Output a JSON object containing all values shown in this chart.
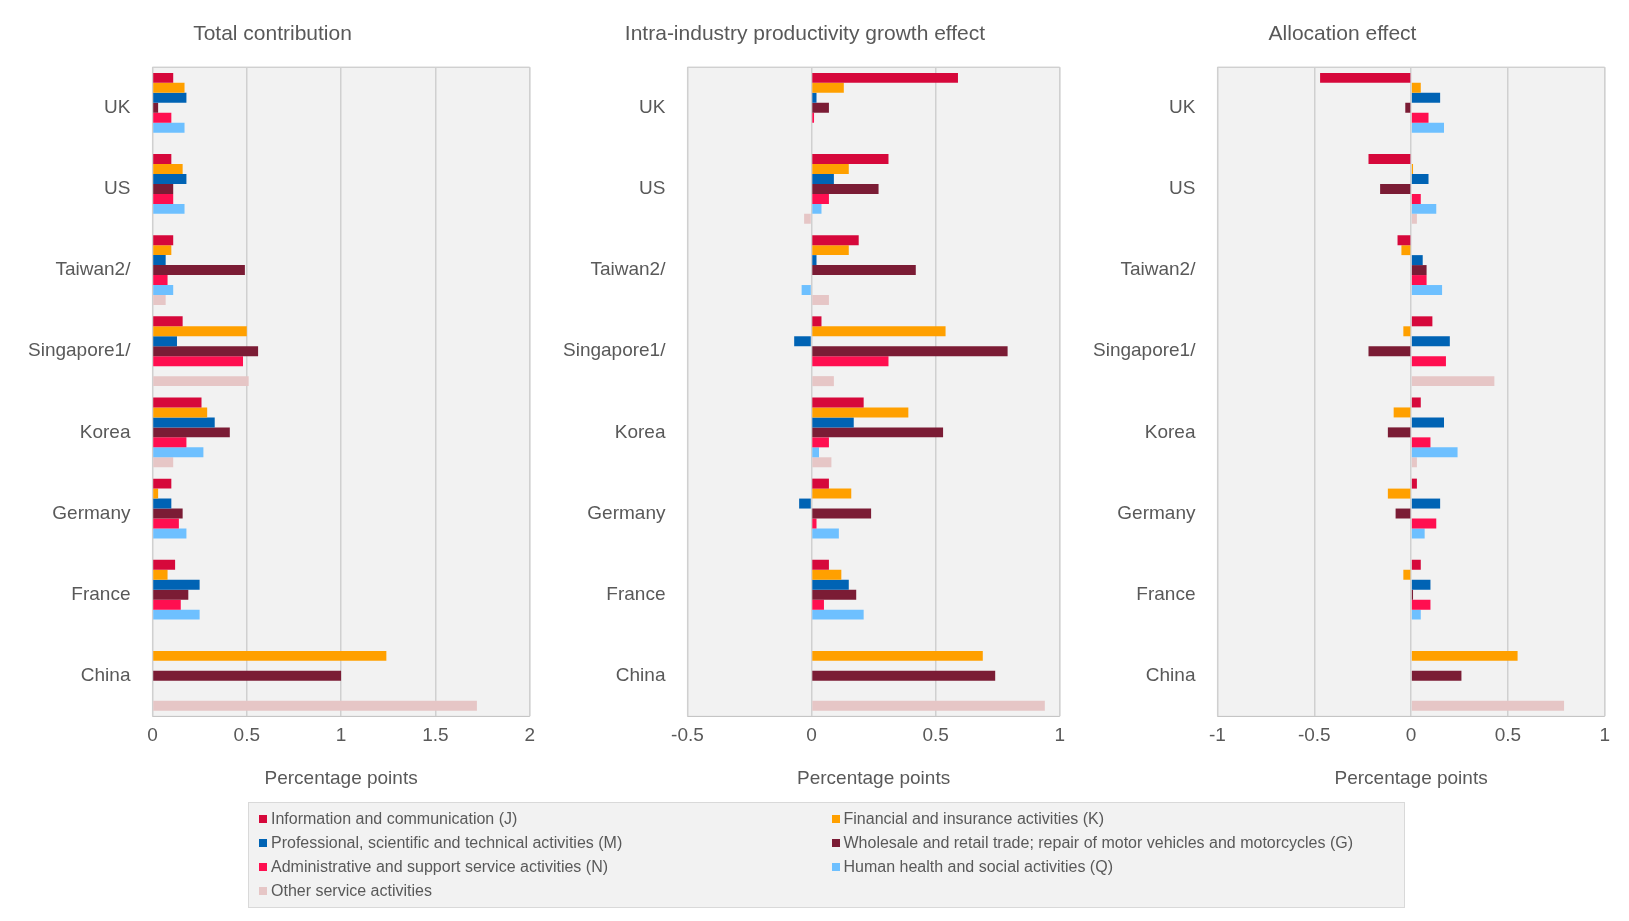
{
  "chart_data": [
    {
      "type": "bar",
      "orientation": "horizontal",
      "title": "Total contribution",
      "xlabel": "Percentage points",
      "categories": [
        "UK",
        "US",
        "Taiwan2/",
        "Singapore1/",
        "Korea",
        "Germany",
        "France",
        "China"
      ],
      "xlim": [
        0,
        2
      ],
      "xticks": [
        0,
        0.5,
        1,
        1.5,
        2
      ],
      "grid": "x",
      "legend": "bottom",
      "series": [
        {
          "name": "Information and communication (J)",
          "color": "#d6083b",
          "values": [
            0.11,
            0.1,
            0.11,
            0.16,
            0.26,
            0.1,
            0.12,
            null
          ]
        },
        {
          "name": "Financial and insurance activities (K)",
          "color": "#ffa000",
          "values": [
            0.17,
            0.16,
            0.1,
            0.5,
            0.29,
            0.03,
            0.08,
            1.24
          ]
        },
        {
          "name": "Professional, scientific and technical activities (M)",
          "color": "#0063b4",
          "values": [
            0.18,
            0.18,
            0.07,
            0.13,
            0.33,
            0.1,
            0.25,
            null
          ]
        },
        {
          "name": "Wholesale and retail trade; repair of motor vehicles and motorcycles (G)",
          "color": "#7b1c35",
          "values": [
            0.03,
            0.11,
            0.49,
            0.56,
            0.41,
            0.16,
            0.19,
            1.0
          ]
        },
        {
          "name": "Administrative and support service activities (N)",
          "color": "#ff0f50",
          "values": [
            0.1,
            0.11,
            0.08,
            0.48,
            0.18,
            0.14,
            0.15,
            null
          ]
        },
        {
          "name": "Human health and social activities (Q)",
          "color": "#6ec0ff",
          "values": [
            0.17,
            0.17,
            0.11,
            null,
            0.27,
            0.18,
            0.25,
            null
          ]
        },
        {
          "name": "Other service activities",
          "color": "#e6c6c6",
          "values": [
            null,
            null,
            0.07,
            0.51,
            0.11,
            null,
            null,
            1.72
          ]
        }
      ]
    },
    {
      "type": "bar",
      "orientation": "horizontal",
      "title": "Intra-industry productivity growth effect",
      "xlabel": "Percentage points",
      "categories": [
        "UK",
        "US",
        "Taiwan2/",
        "Singapore1/",
        "Korea",
        "Germany",
        "France",
        "China"
      ],
      "xlim": [
        -0.5,
        1
      ],
      "xticks": [
        -0.5,
        0,
        0.5,
        1
      ],
      "grid": "x",
      "series": [
        {
          "color": "#d6083b",
          "values": [
            0.59,
            0.31,
            0.19,
            0.04,
            0.21,
            0.07,
            0.07,
            null
          ]
        },
        {
          "color": "#ffa000",
          "values": [
            0.13,
            0.15,
            0.15,
            0.54,
            0.39,
            0.16,
            0.12,
            0.69
          ]
        },
        {
          "color": "#0063b4",
          "values": [
            0.02,
            0.09,
            0.02,
            -0.07,
            0.17,
            -0.05,
            0.15,
            null
          ]
        },
        {
          "color": "#7b1c35",
          "values": [
            0.07,
            0.27,
            0.42,
            0.79,
            0.53,
            0.24,
            0.18,
            0.74
          ]
        },
        {
          "color": "#ff0f50",
          "values": [
            0.01,
            0.07,
            null,
            0.31,
            0.07,
            0.02,
            0.05,
            null
          ]
        },
        {
          "color": "#6ec0ff",
          "values": [
            null,
            0.04,
            -0.04,
            null,
            0.03,
            0.11,
            0.21,
            null
          ]
        },
        {
          "color": "#e6c6c6",
          "values": [
            null,
            -0.03,
            0.07,
            0.09,
            0.08,
            null,
            null,
            0.94
          ]
        }
      ]
    },
    {
      "type": "bar",
      "orientation": "horizontal",
      "title": "Allocation effect",
      "xlabel": "Percentage points",
      "categories": [
        "UK",
        "US",
        "Taiwan2/",
        "Singapore1/",
        "Korea",
        "Germany",
        "France",
        "China"
      ],
      "xlim": [
        -1,
        1
      ],
      "xticks": [
        -1,
        -0.5,
        0,
        0.5,
        1
      ],
      "grid": "x",
      "series": [
        {
          "color": "#d6083b",
          "values": [
            -0.47,
            -0.22,
            -0.07,
            0.11,
            0.05,
            0.03,
            0.05,
            null
          ]
        },
        {
          "color": "#ffa000",
          "values": [
            0.05,
            0.01,
            -0.05,
            -0.04,
            -0.09,
            -0.12,
            -0.04,
            0.55
          ]
        },
        {
          "color": "#0063b4",
          "values": [
            0.15,
            0.09,
            0.06,
            0.2,
            0.17,
            0.15,
            0.1,
            null
          ]
        },
        {
          "color": "#7b1c35",
          "values": [
            -0.03,
            -0.16,
            0.08,
            -0.22,
            -0.12,
            -0.08,
            0.01,
            0.26
          ]
        },
        {
          "color": "#ff0f50",
          "values": [
            0.09,
            0.05,
            0.08,
            0.18,
            0.1,
            0.13,
            0.1,
            null
          ]
        },
        {
          "color": "#6ec0ff",
          "values": [
            0.17,
            0.13,
            0.16,
            null,
            0.24,
            0.07,
            0.05,
            null
          ]
        },
        {
          "color": "#e6c6c6",
          "values": [
            null,
            0.03,
            null,
            0.43,
            0.03,
            null,
            null,
            0.79
          ]
        }
      ]
    }
  ]
}
